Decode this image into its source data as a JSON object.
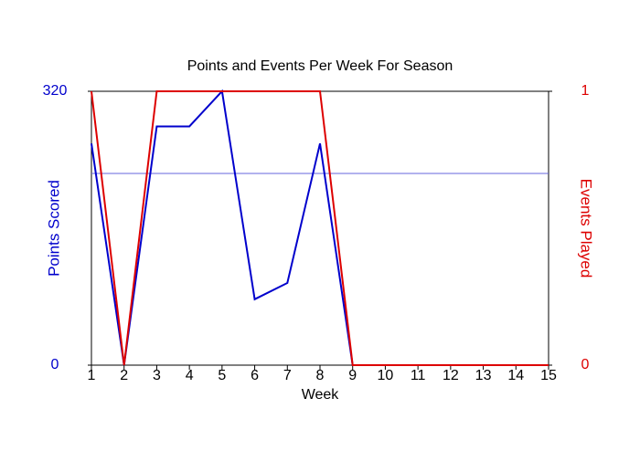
{
  "chart_data": {
    "type": "line",
    "title": "Points and Events Per Week For Season",
    "x_label": "Week",
    "y_label": "Points Scored",
    "y2_label": "Events Played",
    "x": [
      1,
      2,
      3,
      4,
      5,
      6,
      7,
      8,
      9,
      10,
      11,
      12,
      13,
      14,
      15
    ],
    "xlim": [
      1,
      15
    ],
    "xticks": [
      1,
      2,
      3,
      4,
      5,
      6,
      7,
      8,
      9,
      10,
      11,
      12,
      13,
      14,
      15
    ],
    "ylim": [
      0,
      320
    ],
    "yticks": [
      0,
      320
    ],
    "y_color": "#0000cc",
    "y2lim": [
      0,
      1
    ],
    "y2ticks": [
      0,
      1
    ],
    "y2_color": "#dd0000",
    "reference_line": {
      "value": 224,
      "color": "#6666dd"
    },
    "series": [
      {
        "name": "Points Scored",
        "color": "#0000cc",
        "values": [
          259,
          0,
          279,
          279,
          320,
          77,
          96,
          259,
          0,
          0,
          0,
          0,
          0,
          0,
          0
        ]
      },
      {
        "name": "Events Played",
        "color": "#dd0000",
        "axis": "y2",
        "values": [
          1,
          0,
          1,
          1,
          1,
          1,
          1,
          1,
          0,
          0,
          0,
          0,
          0,
          0,
          0
        ]
      }
    ]
  }
}
